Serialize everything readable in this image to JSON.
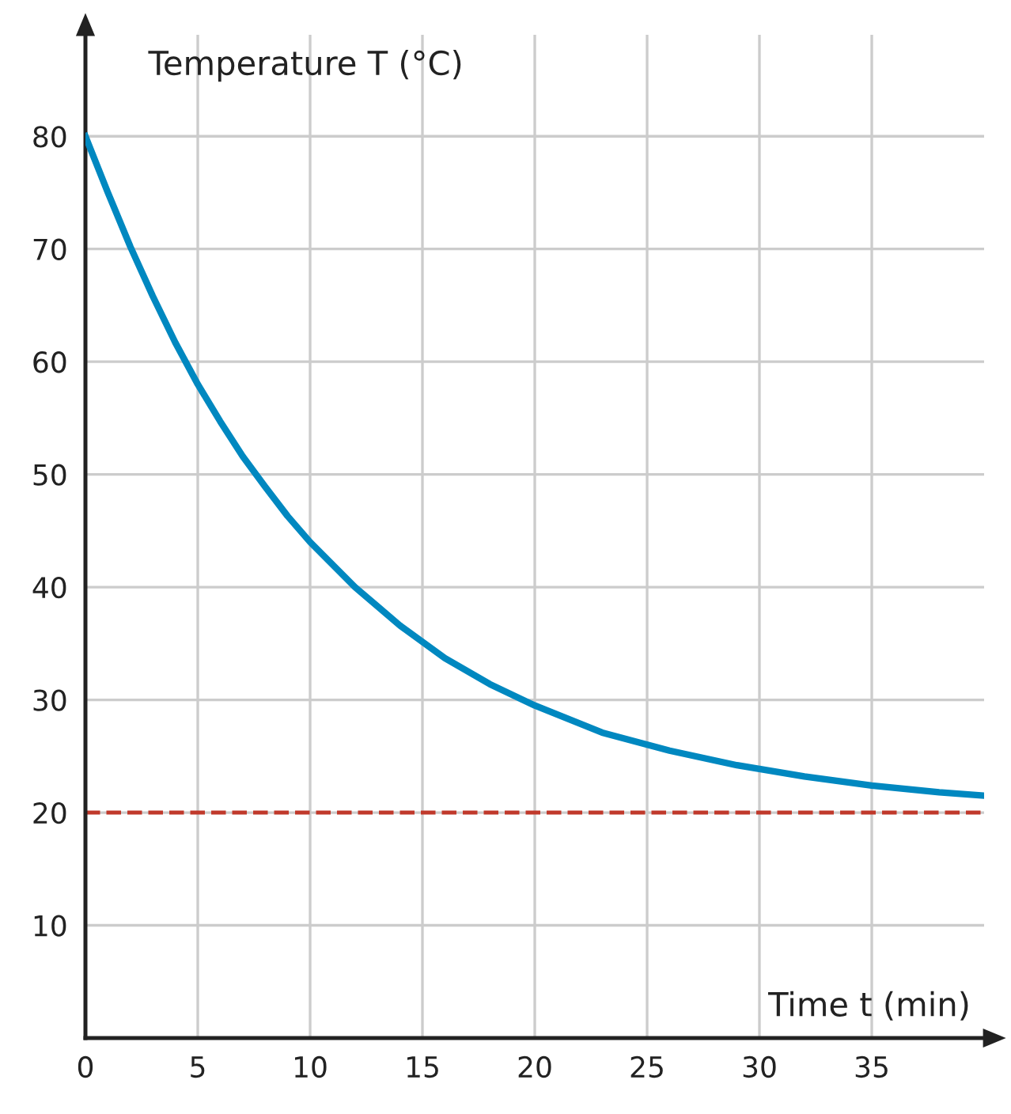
{
  "chart_data": {
    "type": "line",
    "xlabel": "Time t (min)",
    "ylabel": "Temperature T (°C)",
    "x": [
      0,
      1,
      2,
      3,
      4,
      5,
      6,
      7,
      8,
      9,
      10,
      12,
      14,
      16,
      18,
      20,
      23,
      26,
      29,
      32,
      35,
      38,
      40
    ],
    "series": [
      {
        "color": "#0088c0",
        "values": [
          80,
          75,
          70.2,
          65.8,
          61.7,
          58,
          54.7,
          51.6,
          48.9,
          46.3,
          44,
          40,
          36.6,
          33.7,
          31.4,
          29.5,
          27.1,
          25.5,
          24.2,
          23.2,
          22.4,
          21.8,
          21.5
        ]
      }
    ],
    "xlim": [
      0,
      40
    ],
    "ylim": [
      0,
      89
    ],
    "xticks": [
      0,
      5,
      10,
      15,
      20,
      25,
      30,
      35
    ],
    "yticks": [
      10,
      20,
      30,
      40,
      50,
      60,
      70,
      80
    ],
    "ref_lines": [
      {
        "axis": "y",
        "value": 20,
        "color": "#c0392b",
        "line_style": "dashed"
      }
    ],
    "grid": true,
    "marker": "none",
    "line_style": "solid",
    "legend": false
  }
}
